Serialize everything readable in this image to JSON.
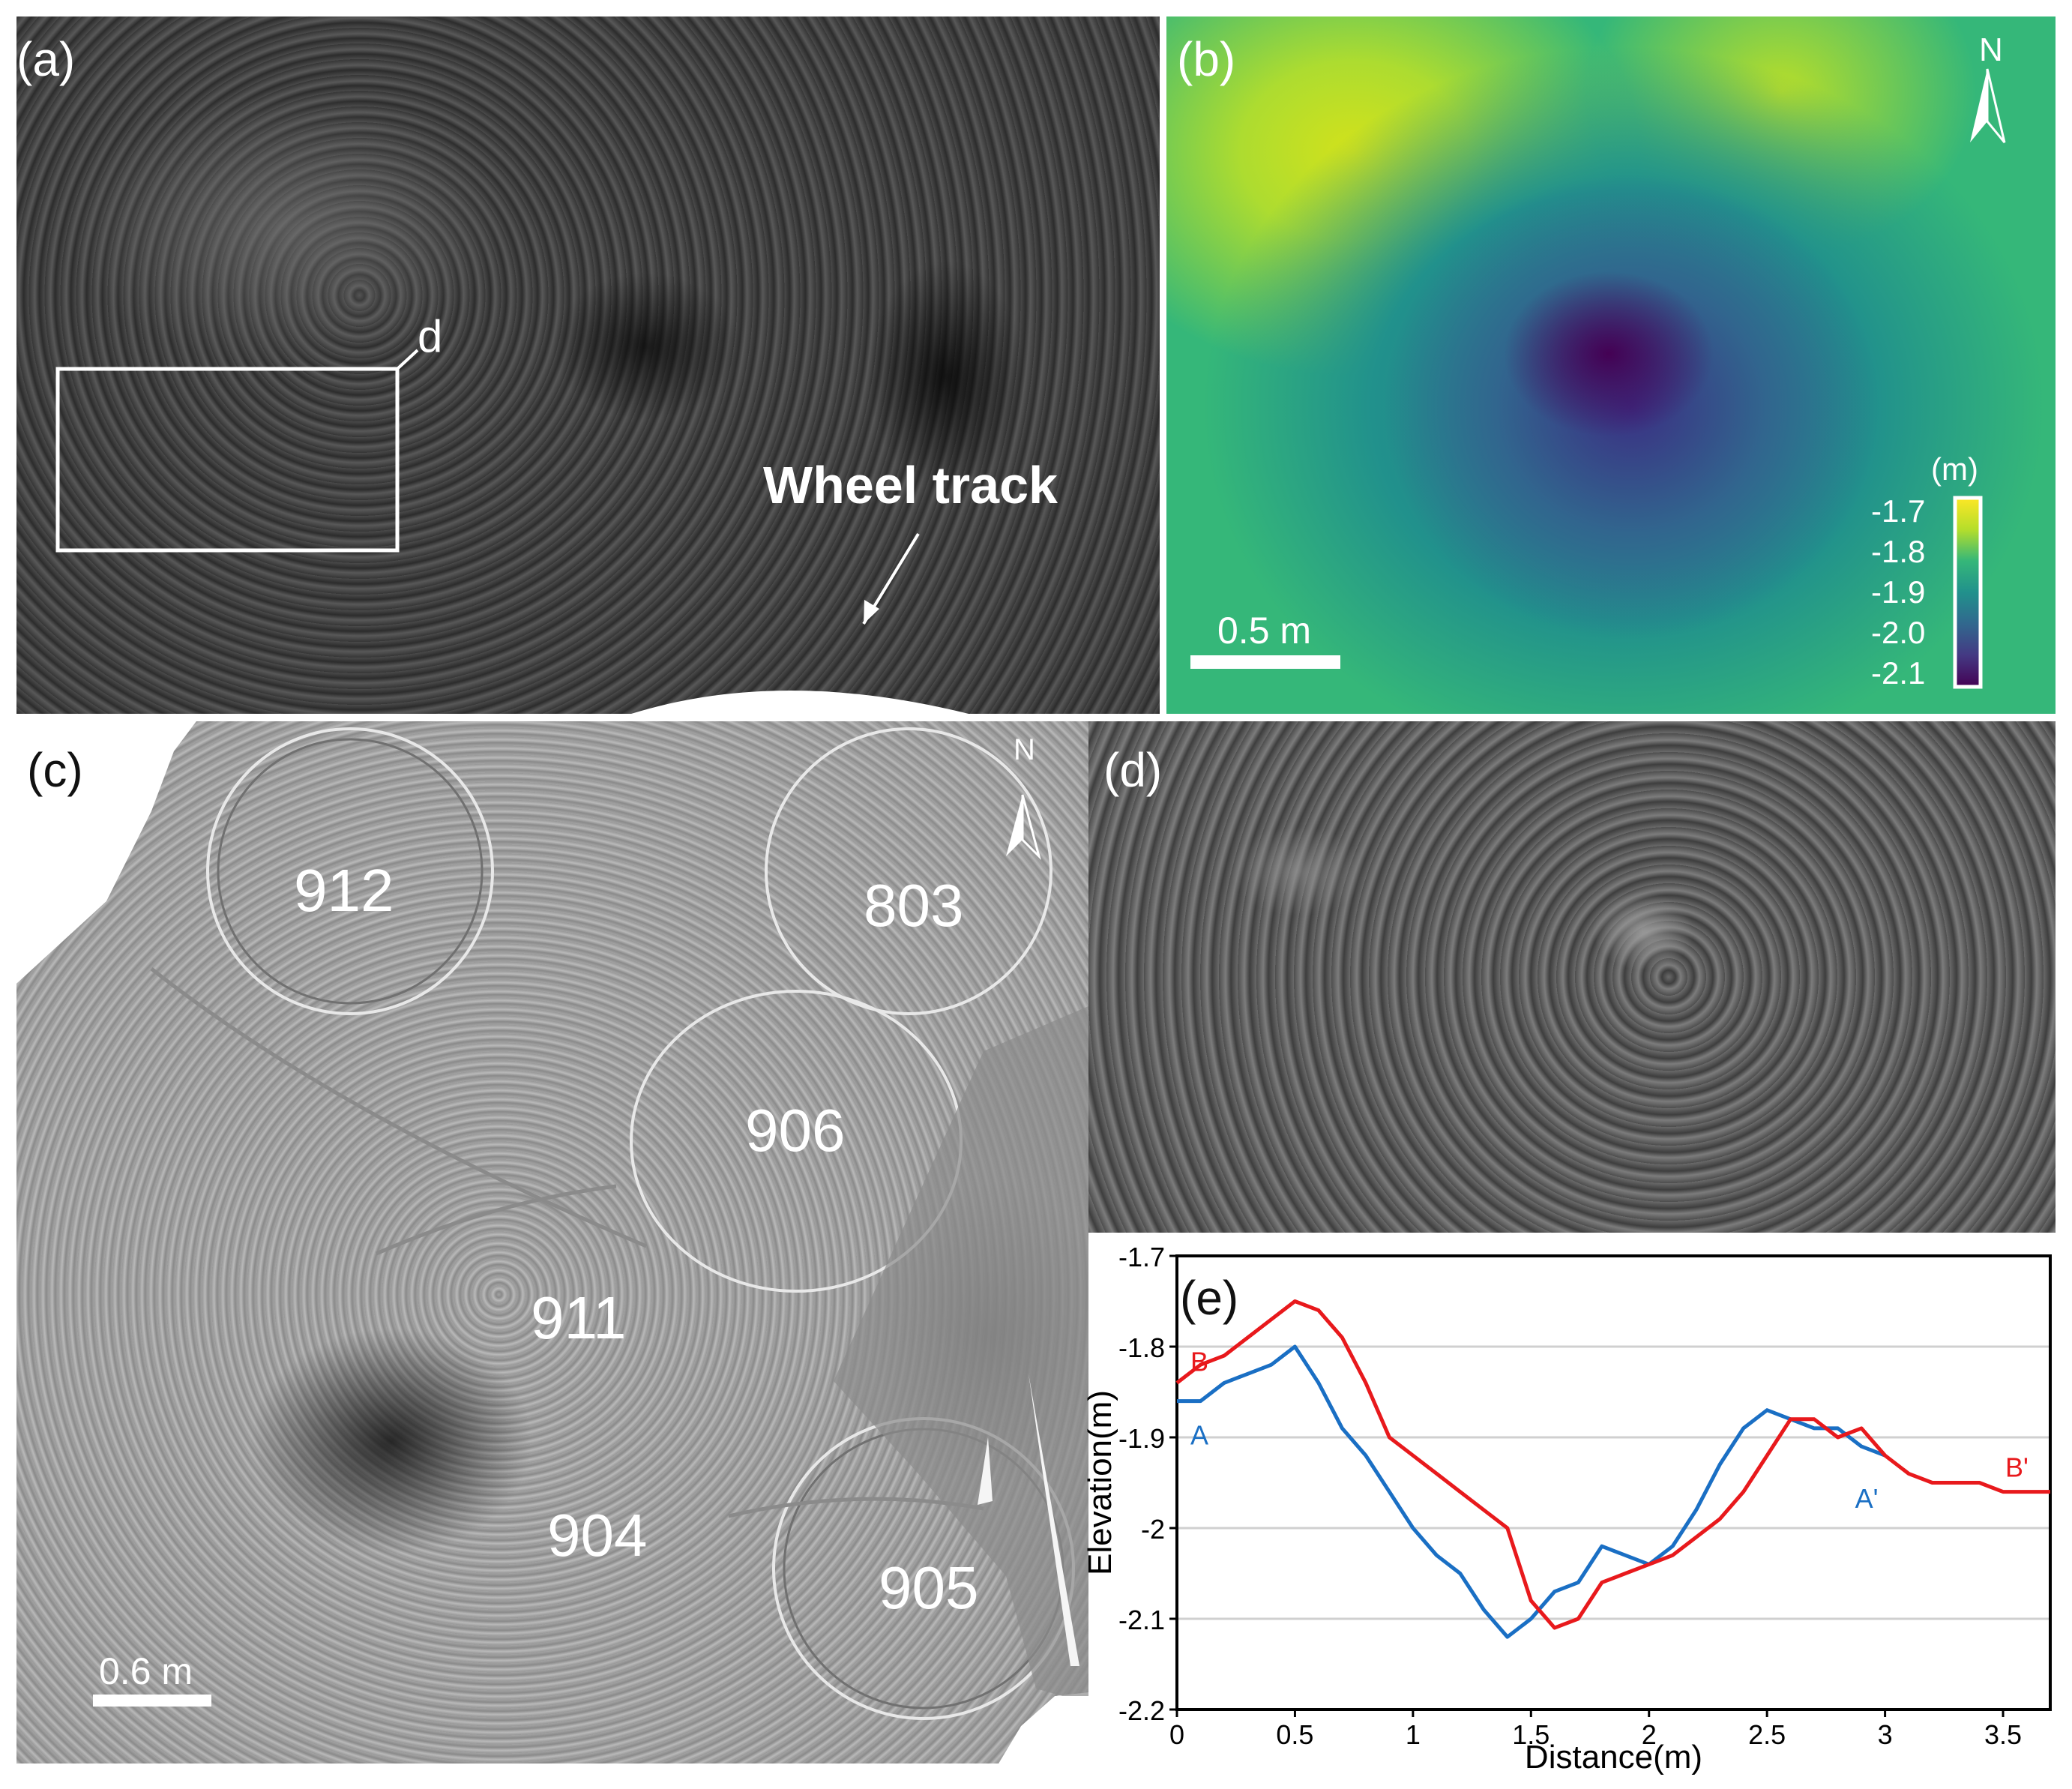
{
  "panels": {
    "a": {
      "label": "(a)",
      "box_label": "d",
      "wheel_track": "Wheel track"
    },
    "b": {
      "label": "(b)",
      "north": "N",
      "scale_text": "0.5 m",
      "colorbar_unit": "(m)",
      "colorbar_ticks": [
        "-1.7",
        "-1.8",
        "-1.9",
        "-2.0",
        "-2.1"
      ],
      "colormap": [
        "#fde725",
        "#b5de2b",
        "#35b779",
        "#21918c",
        "#31688e",
        "#443983",
        "#440154"
      ]
    },
    "c": {
      "label": "(c)",
      "north": "N",
      "scale_text": "0.6 m",
      "tracks": [
        "912",
        "803",
        "906",
        "911",
        "904",
        "905"
      ]
    },
    "d": {
      "label": "(d)"
    },
    "e": {
      "label": "(e)"
    }
  },
  "chart_data": {
    "type": "line",
    "title": "",
    "xlabel": "Distance(m)",
    "ylabel": "Elevation(m)",
    "xlim": [
      0,
      3.7
    ],
    "ylim": [
      -2.2,
      -1.7
    ],
    "xticks": [
      "0",
      "0.5",
      "1",
      "1.5",
      "2",
      "2.5",
      "3",
      "3.5"
    ],
    "yticks": [
      "-1.7",
      "-1.8",
      "-1.9",
      "-2",
      "-2.1",
      "-2.2"
    ],
    "grid": "horizontal",
    "series": [
      {
        "name": "A",
        "end_label": "A'",
        "color": "#1a6fc4",
        "x": [
          0,
          0.1,
          0.2,
          0.3,
          0.4,
          0.5,
          0.6,
          0.7,
          0.8,
          0.9,
          1.0,
          1.1,
          1.2,
          1.3,
          1.4,
          1.5,
          1.6,
          1.7,
          1.8,
          1.9,
          2.0,
          2.1,
          2.2,
          2.3,
          2.4,
          2.5,
          2.6,
          2.7,
          2.8,
          2.9,
          3.0
        ],
        "y": [
          -1.86,
          -1.86,
          -1.84,
          -1.83,
          -1.82,
          -1.8,
          -1.84,
          -1.89,
          -1.92,
          -1.96,
          -2.0,
          -2.03,
          -2.05,
          -2.09,
          -2.12,
          -2.1,
          -2.07,
          -2.06,
          -2.02,
          -2.03,
          -2.04,
          -2.02,
          -1.98,
          -1.93,
          -1.89,
          -1.87,
          -1.88,
          -1.89,
          -1.89,
          -1.91,
          -1.92
        ]
      },
      {
        "name": "B",
        "end_label": "B'",
        "color": "#e8191c",
        "x": [
          0,
          0.1,
          0.2,
          0.3,
          0.4,
          0.5,
          0.6,
          0.7,
          0.8,
          0.9,
          1.0,
          1.1,
          1.2,
          1.3,
          1.4,
          1.5,
          1.6,
          1.7,
          1.8,
          1.9,
          2.0,
          2.1,
          2.2,
          2.3,
          2.4,
          2.5,
          2.6,
          2.7,
          2.8,
          2.9,
          3.0,
          3.1,
          3.2,
          3.3,
          3.4,
          3.5,
          3.6,
          3.7
        ],
        "y": [
          -1.84,
          -1.82,
          -1.81,
          -1.79,
          -1.77,
          -1.75,
          -1.76,
          -1.79,
          -1.84,
          -1.9,
          -1.92,
          -1.94,
          -1.96,
          -1.98,
          -2.0,
          -2.08,
          -2.11,
          -2.1,
          -2.06,
          -2.05,
          -2.04,
          -2.03,
          -2.01,
          -1.99,
          -1.96,
          -1.92,
          -1.88,
          -1.88,
          -1.9,
          -1.89,
          -1.92,
          -1.94,
          -1.95,
          -1.95,
          -1.95,
          -1.96,
          -1.96,
          -1.96
        ]
      }
    ]
  }
}
